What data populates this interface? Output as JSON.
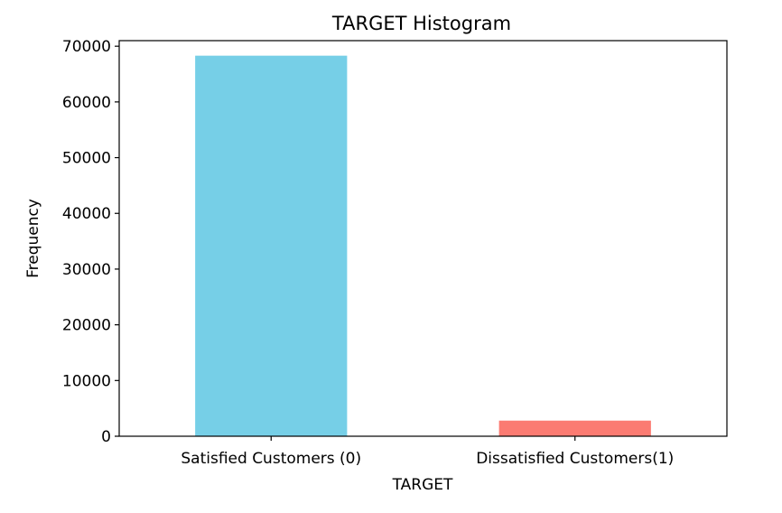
{
  "chart_data": {
    "type": "bar",
    "title": "TARGET Histogram",
    "xlabel": "TARGET",
    "ylabel": "Frequency",
    "categories": [
      "Satisfied Customers (0)",
      "Dissatisfied Customers(1)"
    ],
    "values": [
      68300,
      2800
    ],
    "colors": [
      "#76cfe7",
      "#fb7b72"
    ],
    "ylim": [
      0,
      71000
    ],
    "yticks": [
      0,
      10000,
      20000,
      30000,
      40000,
      50000,
      60000,
      70000
    ],
    "ytick_labels": [
      "0",
      "10000",
      "20000",
      "30000",
      "40000",
      "50000",
      "60000",
      "70000"
    ],
    "grid": false,
    "legend": false
  }
}
